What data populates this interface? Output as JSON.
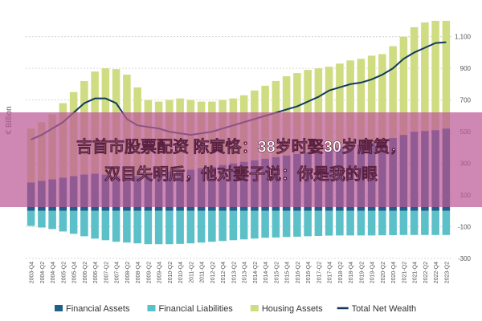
{
  "chart_data": {
    "type": "stacked-bar-line",
    "ylabel": "€ Billion",
    "categories": [
      "2003-Q4",
      "2004-Q2",
      "2004-Q4",
      "2005-Q2",
      "2005-Q4",
      "2006-Q2",
      "2006-Q4",
      "2007-Q2",
      "2007-Q4",
      "2008-Q2",
      "2008-Q4",
      "2009-Q2",
      "2009-Q4",
      "2010-Q2",
      "2010-Q4",
      "2011-Q2",
      "2011-Q4",
      "2012-Q2",
      "2012-Q4",
      "2013-Q2",
      "2013-Q4",
      "2014-Q2",
      "2014-Q4",
      "2015-Q2",
      "2015-Q4",
      "2016-Q2",
      "2016-Q4",
      "2017-Q2",
      "2017-Q4",
      "2018-Q2",
      "2018-Q4",
      "2019-Q2",
      "2019-Q4",
      "2020-Q2",
      "2020-Q4",
      "2021-Q2",
      "2021-Q4",
      "2022-Q2",
      "2022-Q4",
      "2023-Q2"
    ],
    "series": [
      {
        "name": "Financial Assets",
        "color": "#1f5f8b",
        "kind": "bar",
        "values": [
          180,
          190,
          200,
          210,
          220,
          230,
          235,
          230,
          220,
          215,
          220,
          230,
          240,
          250,
          255,
          260,
          270,
          280,
          290,
          300,
          310,
          320,
          330,
          340,
          350,
          360,
          370,
          380,
          390,
          400,
          410,
          420,
          430,
          440,
          460,
          480,
          500,
          505,
          510,
          520
        ]
      },
      {
        "name": "Financial Liabilities",
        "color": "#5bc0c8",
        "kind": "bar",
        "values": [
          -95,
          -105,
          -115,
          -130,
          -145,
          -160,
          -175,
          -185,
          -195,
          -200,
          -205,
          -210,
          -210,
          -210,
          -208,
          -205,
          -200,
          -195,
          -190,
          -185,
          -180,
          -175,
          -170,
          -168,
          -165,
          -163,
          -160,
          -158,
          -156,
          -155,
          -155,
          -155,
          -155,
          -154,
          -153,
          -152,
          -152,
          -152,
          -152,
          -152
        ]
      },
      {
        "name": "Housing Assets",
        "color": "#cfdc82",
        "kind": "bar",
        "values": [
          340,
          370,
          410,
          470,
          530,
          590,
          645,
          670,
          675,
          645,
          560,
          470,
          450,
          450,
          455,
          440,
          420,
          410,
          410,
          410,
          420,
          440,
          460,
          480,
          500,
          510,
          520,
          520,
          520,
          530,
          540,
          540,
          550,
          550,
          580,
          620,
          660,
          685,
          690,
          680
        ]
      },
      {
        "name": "Total Net Wealth",
        "color": "#123a5e",
        "kind": "line",
        "values": [
          450,
          480,
          520,
          560,
          620,
          680,
          710,
          710,
          680,
          580,
          540,
          530,
          520,
          500,
          490,
          480,
          490,
          500,
          520,
          540,
          560,
          580,
          600,
          620,
          640,
          660,
          690,
          720,
          760,
          780,
          800,
          810,
          830,
          860,
          900,
          960,
          1000,
          1030,
          1060,
          1065
        ]
      }
    ],
    "ylim": [
      -300,
      1220
    ],
    "yticks": [
      -300,
      -100,
      100,
      300,
      500,
      700,
      900,
      {
        "value": 1100,
        "label": "1,100"
      }
    ],
    "grid": true
  },
  "overlay": {
    "lines": [
      "吉首市股票配资 陈寅恪：38岁时娶30岁唐筼，",
      "双目失明后，他对妻子说：你是我的眼"
    ]
  }
}
